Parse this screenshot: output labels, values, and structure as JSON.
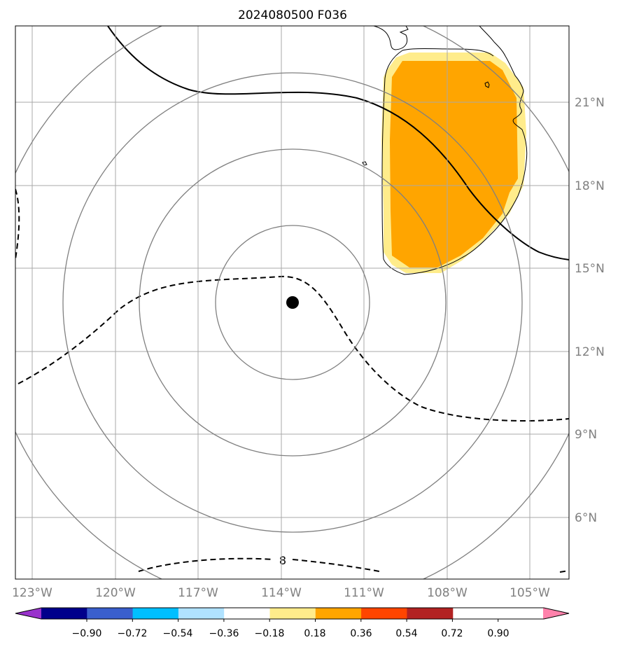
{
  "title": "2024080500 F036",
  "map": {
    "lon_labels": [
      "123°W",
      "120°W",
      "117°W",
      "114°W",
      "111°W",
      "108°W",
      "105°W"
    ],
    "lat_labels": [
      "21°N",
      "18°N",
      "15°N",
      "12°N",
      "9°N",
      "6°N"
    ],
    "lon_range": [
      -123.6,
      -103.6
    ],
    "lat_range": [
      3.8,
      23.6
    ],
    "gridlines": true,
    "center_marker": {
      "lon": -114,
      "lat": 13.7
    },
    "range_rings": 4,
    "contour_label": "8"
  },
  "colorbar": {
    "ticks": [
      "−0.90",
      "−0.72",
      "−0.54",
      "−0.36",
      "−0.18",
      "0.18",
      "0.36",
      "0.54",
      "0.72",
      "0.90"
    ],
    "colors": [
      "#9932cc",
      "#00008b",
      "#3a5fcd",
      "#00bfff",
      "#b0e2ff",
      "#ffffff",
      "#ffec8b",
      "#ffa500",
      "#ff4500",
      "#b22222",
      "#ff82ab"
    ],
    "extend": "both"
  }
}
